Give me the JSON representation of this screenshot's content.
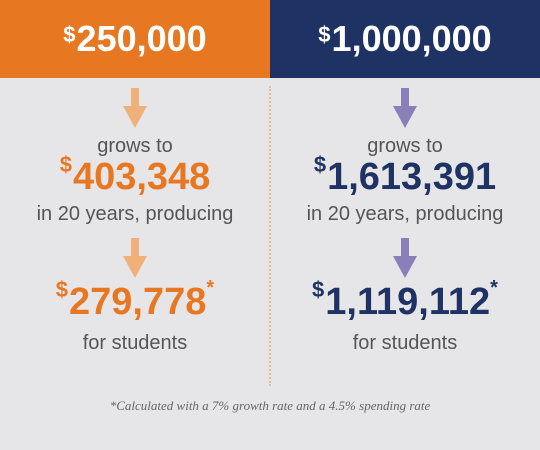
{
  "columns": [
    {
      "initial": {
        "currency": "$",
        "amount": "250,000"
      },
      "growth_text": "grows to",
      "grown": {
        "currency": "$",
        "amount": "403,348"
      },
      "period_text": "in 20 years, producing",
      "result": {
        "currency": "$",
        "amount": "279,778",
        "note_mark": "*"
      },
      "result_text": "for students"
    },
    {
      "initial": {
        "currency": "$",
        "amount": "1,000,000"
      },
      "growth_text": "grows to",
      "grown": {
        "currency": "$",
        "amount": "1,613,391"
      },
      "period_text": "in 20 years, producing",
      "result": {
        "currency": "$",
        "amount": "1,119,112",
        "note_mark": "*"
      },
      "result_text": "for students"
    }
  ],
  "footnote": "*Calculated with a 7% growth rate and a 4.5% spending rate"
}
